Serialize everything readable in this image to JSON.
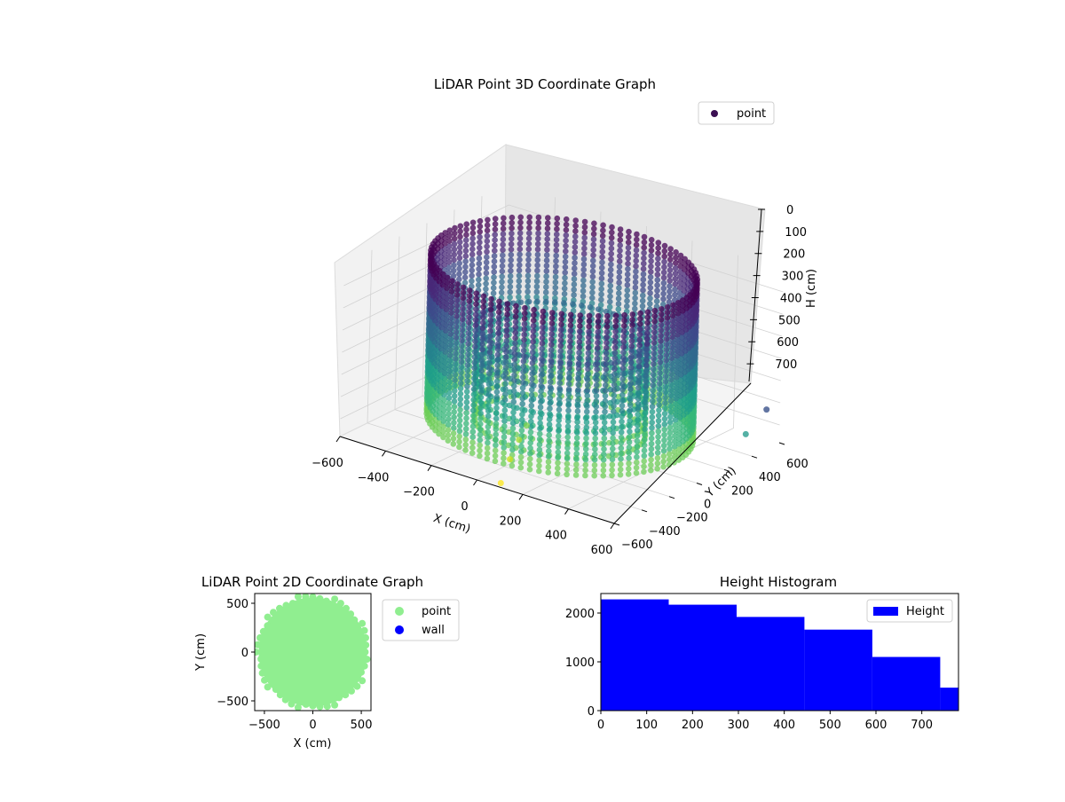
{
  "chart_data": [
    {
      "type": "scatter",
      "projection": "3d",
      "title": "LiDAR Point 3D Coordinate Graph",
      "xlabel": "X (cm)",
      "ylabel": "Y (cm)",
      "zlabel": "H (cm)",
      "xlim": [
        -600,
        600
      ],
      "ylim": [
        -600,
        600
      ],
      "zlim": [
        0,
        780
      ],
      "z_inverted": true,
      "xticks": [
        "−600",
        "−400",
        "−200",
        "0",
        "200",
        "400",
        "600"
      ],
      "yticks": [
        "−600",
        "−400",
        "−200",
        "0",
        "200",
        "400",
        "600"
      ],
      "zticks": [
        "0",
        "100",
        "200",
        "300",
        "400",
        "500",
        "600",
        "700"
      ],
      "colormap": "viridis",
      "grid": true,
      "legend": {
        "placement": "top-right",
        "entries": [
          {
            "name": "point",
            "color": "#3b0f52"
          }
        ]
      },
      "shape": {
        "description": "cylindrical wall of points with vertical stripes",
        "radius_cm": 500,
        "height_range": [
          0,
          780
        ]
      },
      "stray_points": [
        {
          "x": 80,
          "y": -560,
          "h": 780,
          "color": "#fde725"
        },
        {
          "x": 70,
          "y": -480,
          "h": 700,
          "color": "#c8e020"
        },
        {
          "x": 60,
          "y": -400,
          "h": 640,
          "color": "#a5db36"
        },
        {
          "x": 50,
          "y": -330,
          "h": 600,
          "color": "#7ad151"
        },
        {
          "x": 560,
          "y": 420,
          "h": 700,
          "color": "#2a9d8f"
        },
        {
          "x": 600,
          "y": 500,
          "h": 600,
          "color": "#3b528b"
        }
      ]
    },
    {
      "type": "scatter",
      "title": "LiDAR Point 2D Coordinate Graph",
      "xlabel": "X (cm)",
      "ylabel": "Y (cm)",
      "xlim": [
        -600,
        600
      ],
      "ylim": [
        -600,
        600
      ],
      "xticks": [
        "−500",
        "0",
        "500"
      ],
      "yticks": [
        "−500",
        "0",
        "500"
      ],
      "series": [
        {
          "name": "point",
          "color": "#90ee90",
          "region": "filled disc centred at (0,0), radius ≈ 560"
        },
        {
          "name": "wall",
          "color": "#0000ff",
          "region": "none visible"
        }
      ],
      "legend": {
        "placement": "outside-right"
      }
    },
    {
      "type": "bar",
      "subtype": "histogram",
      "title": "Height Histogram",
      "series": [
        {
          "name": "Height",
          "color": "#0000ff"
        }
      ],
      "bins": [
        {
          "start": 0,
          "end": 148,
          "count": 2280
        },
        {
          "start": 148,
          "end": 296,
          "count": 2170
        },
        {
          "start": 296,
          "end": 444,
          "count": 1920
        },
        {
          "start": 444,
          "end": 592,
          "count": 1660
        },
        {
          "start": 592,
          "end": 740,
          "count": 1100
        },
        {
          "start": 740,
          "end": 780,
          "count": 470
        }
      ],
      "xlim": [
        0,
        780
      ],
      "ylim": [
        0,
        2400
      ],
      "xticks": [
        0,
        100,
        200,
        300,
        400,
        500,
        600,
        700
      ],
      "yticks": [
        0,
        1000,
        2000
      ],
      "legend": {
        "placement": "top-right"
      }
    }
  ]
}
